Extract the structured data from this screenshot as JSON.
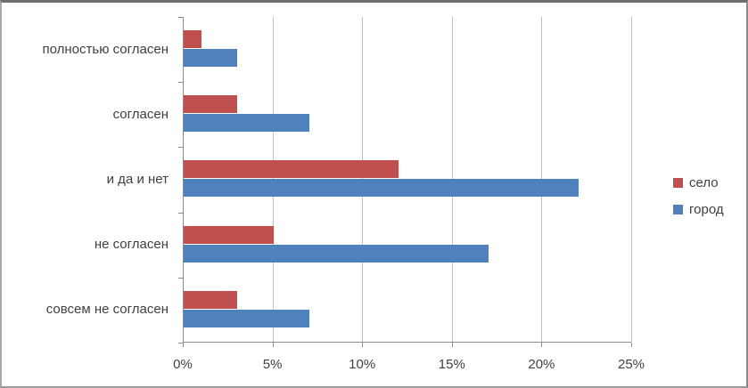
{
  "chart_data": {
    "type": "bar",
    "orientation": "horizontal",
    "title": "",
    "xlabel": "",
    "ylabel": "",
    "categories": [
      "полностью согласен",
      "согласен",
      "и да и нет",
      "не согласен",
      "совсем не согласен"
    ],
    "series": [
      {
        "name": "село",
        "color": "#c0504d",
        "values": [
          1,
          3,
          12,
          5,
          3
        ]
      },
      {
        "name": "город",
        "color": "#4f81bd",
        "values": [
          3,
          7,
          22,
          17,
          7
        ]
      }
    ],
    "x_ticks": [
      "0%",
      "5%",
      "10%",
      "15%",
      "20%",
      "25%"
    ],
    "x_tick_values": [
      0,
      5,
      10,
      15,
      20,
      25
    ],
    "xlim": [
      0,
      25
    ],
    "grid": true,
    "legend_position": "right",
    "colors": {
      "grid": "#bfbfbf",
      "axis": "#8c8c8c",
      "text": "#404040",
      "background": "#ffffff"
    }
  },
  "legend": {
    "items": [
      {
        "label": "село"
      },
      {
        "label": "город"
      }
    ]
  }
}
